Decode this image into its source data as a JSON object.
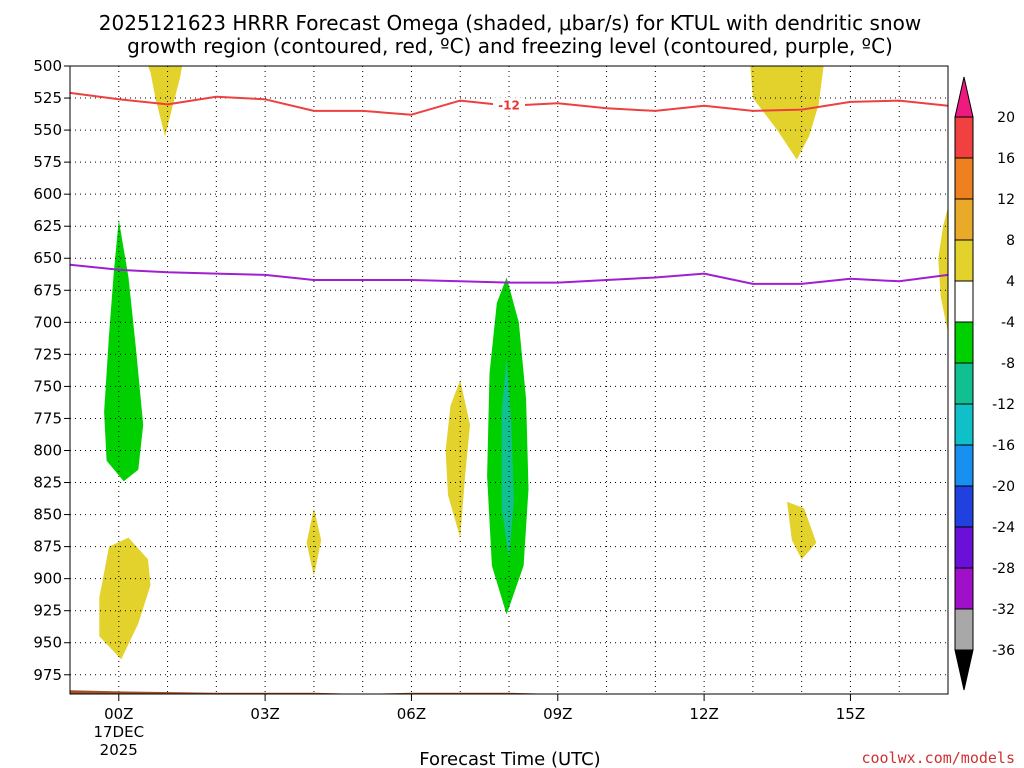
{
  "chart_data": {
    "type": "heatmap",
    "title_line1": "2025121623 HRRR Forecast Omega (shaded, μbar/s) for KTUL with dendritic snow",
    "title_line2": "growth region (contoured, red, ºC) and freezing level (contoured, purple, ºC)",
    "xlabel": "Forecast Time (UTC)",
    "credit": "coolwx.com/models",
    "x_range_hours": [
      -1,
      17
    ],
    "y_range_hPa": [
      500,
      990
    ],
    "x_ticks": [
      {
        "hour": 0,
        "label": "00Z",
        "sub1": "17DEC",
        "sub2": "2025"
      },
      {
        "hour": 3,
        "label": "03Z",
        "sub1": "",
        "sub2": ""
      },
      {
        "hour": 6,
        "label": "06Z",
        "sub1": "",
        "sub2": ""
      },
      {
        "hour": 9,
        "label": "09Z",
        "sub1": "",
        "sub2": ""
      },
      {
        "hour": 12,
        "label": "12Z",
        "sub1": "",
        "sub2": ""
      },
      {
        "hour": 15,
        "label": "15Z",
        "sub1": "",
        "sub2": ""
      }
    ],
    "y_ticks": [
      500,
      525,
      550,
      575,
      600,
      625,
      650,
      675,
      700,
      725,
      750,
      775,
      800,
      825,
      850,
      875,
      900,
      925,
      950,
      975
    ],
    "colorbar": {
      "labels": [
        "20",
        "16",
        "12",
        "8",
        "4",
        "-4",
        "-8",
        "-12",
        "-16",
        "-20",
        "-24",
        "-28",
        "-32",
        "-36"
      ],
      "bins": [
        {
          "lo": 16,
          "hi": 20,
          "color": "#f04040"
        },
        {
          "lo": 12,
          "hi": 16,
          "color": "#ee8020"
        },
        {
          "lo": 8,
          "hi": 12,
          "color": "#e8aa28"
        },
        {
          "lo": 4,
          "hi": 8,
          "color": "#e3d22c"
        },
        {
          "lo": -4,
          "hi": 4,
          "color": "#ffffff"
        },
        {
          "lo": -8,
          "hi": -4,
          "color": "#00d000"
        },
        {
          "lo": -12,
          "hi": -8,
          "color": "#10c090"
        },
        {
          "lo": -16,
          "hi": -12,
          "color": "#10c0c8"
        },
        {
          "lo": -20,
          "hi": -16,
          "color": "#1890f0"
        },
        {
          "lo": -24,
          "hi": -20,
          "color": "#2040e0"
        },
        {
          "lo": -28,
          "hi": -24,
          "color": "#6a10d8"
        },
        {
          "lo": -32,
          "hi": -28,
          "color": "#a010c8"
        },
        {
          "lo": -36,
          "hi": -32,
          "color": "#a8a8a8"
        }
      ],
      "over_color": "#ee1a80",
      "under_color": "#000000"
    },
    "shaded_regions": [
      {
        "name": "omega-pos-a",
        "color": "#e3d22c",
        "points": [
          [
            0.6,
            500
          ],
          [
            1.3,
            500
          ],
          [
            1.25,
            510
          ],
          [
            1.1,
            532
          ],
          [
            0.95,
            555
          ],
          [
            0.75,
            525
          ],
          [
            0.65,
            505
          ]
        ]
      },
      {
        "name": "omega-pos-b",
        "color": "#e3d22c",
        "points": [
          [
            12.95,
            500
          ],
          [
            14.45,
            500
          ],
          [
            14.35,
            530
          ],
          [
            14.15,
            555
          ],
          [
            13.9,
            573
          ],
          [
            13.5,
            550
          ],
          [
            13.0,
            525
          ]
        ]
      },
      {
        "name": "omega-pos-c",
        "color": "#e3d22c",
        "points": [
          [
            17,
            610
          ],
          [
            17,
            708
          ],
          [
            16.85,
            680
          ],
          [
            16.8,
            650
          ],
          [
            16.9,
            625
          ]
        ]
      },
      {
        "name": "omega-neg-a",
        "color": "#00d000",
        "points": [
          [
            0.0,
            620
          ],
          [
            0.2,
            665
          ],
          [
            0.35,
            720
          ],
          [
            0.5,
            780
          ],
          [
            0.4,
            815
          ],
          [
            0.1,
            824
          ],
          [
            -0.25,
            808
          ],
          [
            -0.3,
            770
          ],
          [
            -0.2,
            710
          ],
          [
            -0.1,
            660
          ]
        ]
      },
      {
        "name": "omega-pos-d",
        "color": "#e3d22c",
        "points": [
          [
            -0.4,
            915
          ],
          [
            -0.2,
            875
          ],
          [
            0.2,
            868
          ],
          [
            0.6,
            885
          ],
          [
            0.65,
            905
          ],
          [
            0.4,
            935
          ],
          [
            0.05,
            963
          ],
          [
            -0.4,
            945
          ]
        ]
      },
      {
        "name": "omega-pos-e",
        "color": "#e3d22c",
        "points": [
          [
            4.0,
            845
          ],
          [
            4.15,
            870
          ],
          [
            4.0,
            898
          ],
          [
            3.85,
            872
          ]
        ]
      },
      {
        "name": "omega-pos-f",
        "color": "#e3d22c",
        "points": [
          [
            7.0,
            745
          ],
          [
            7.2,
            780
          ],
          [
            7.1,
            820
          ],
          [
            7.0,
            868
          ],
          [
            6.75,
            835
          ],
          [
            6.7,
            800
          ],
          [
            6.8,
            765
          ]
        ]
      },
      {
        "name": "omega-neg-b",
        "color": "#00d000",
        "points": [
          [
            7.95,
            665
          ],
          [
            8.2,
            700
          ],
          [
            8.35,
            760
          ],
          [
            8.4,
            830
          ],
          [
            8.3,
            890
          ],
          [
            7.95,
            928
          ],
          [
            7.65,
            890
          ],
          [
            7.55,
            820
          ],
          [
            7.6,
            740
          ],
          [
            7.75,
            685
          ]
        ]
      },
      {
        "name": "omega-neg-b-core",
        "color": "#10c090",
        "points": [
          [
            7.95,
            728
          ],
          [
            8.05,
            780
          ],
          [
            8.1,
            840
          ],
          [
            8.0,
            885
          ],
          [
            7.85,
            845
          ],
          [
            7.85,
            770
          ]
        ]
      },
      {
        "name": "omega-pos-g",
        "color": "#e3d22c",
        "points": [
          [
            13.7,
            840
          ],
          [
            14.05,
            845
          ],
          [
            14.3,
            872
          ],
          [
            14.0,
            885
          ],
          [
            13.8,
            870
          ]
        ]
      }
    ],
    "contour_minus12": {
      "name": "dendritic-growth-minus-12C",
      "label": "-12",
      "label_at_hour": 8.0,
      "color": "#ee4040",
      "hours": [
        -1,
        0,
        1,
        2,
        3,
        4,
        5,
        6,
        7,
        8,
        9,
        10,
        11,
        12,
        13,
        14,
        15,
        16,
        17
      ],
      "pressure": [
        521,
        526,
        530,
        524,
        526,
        535,
        535,
        538,
        527,
        531,
        529,
        533,
        535,
        531,
        535,
        534,
        528,
        527,
        531
      ]
    },
    "freezing_level": {
      "name": "freezing-level-0C",
      "color": "#a020d0",
      "hours": [
        -1,
        0,
        1,
        2,
        3,
        4,
        5,
        6,
        7,
        8,
        9,
        10,
        11,
        12,
        13,
        14,
        15,
        16,
        17
      ],
      "pressure": [
        655,
        659,
        661,
        662,
        663,
        667,
        667,
        667,
        668,
        669,
        669,
        667,
        665,
        662,
        670,
        670,
        666,
        668,
        663
      ]
    },
    "surface_terrain": {
      "name": "ground-surface",
      "color": "#a05028",
      "hours": [
        -1,
        0,
        2,
        4,
        5,
        6,
        7,
        8,
        9,
        10,
        12,
        14,
        17
      ],
      "pressure": [
        987,
        988,
        989,
        989,
        990,
        989,
        989,
        989,
        990,
        990,
        990,
        990,
        990
      ]
    }
  }
}
